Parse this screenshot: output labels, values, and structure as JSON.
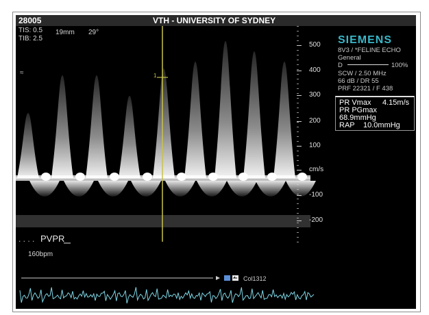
{
  "header": {
    "left_id": "28005",
    "title": "VTH - UNIVERSITY OF SYDNEY"
  },
  "acq": {
    "tis": "TIS: 0.5",
    "tib": "TIB: 2.5",
    "depth": "19mm",
    "angle": "29°",
    "cursor_marker": "1"
  },
  "scale": {
    "labels": [
      "500",
      "400",
      "300",
      "200",
      "100",
      "cm/s",
      "-100",
      "-200"
    ],
    "unit": "cm/s"
  },
  "system": {
    "brand": "SIEMENS",
    "probe": "8V3 / *FELINE ECHO",
    "preset": "General",
    "gain_label": "D",
    "gain_value": "100%",
    "mode": "SCW / 2.50 MHz",
    "db": "66 dB / DR 55",
    "prf": "PRF 22321 / F 438"
  },
  "measurements": [
    {
      "label": "PR Vmax",
      "value": "4.15m/s"
    },
    {
      "label": "PR PGmax",
      "value": ""
    },
    {
      "label": "68.9mmHg",
      "value": ""
    },
    {
      "label": "RAP",
      "value": "10.0mmHg"
    }
  ],
  "annotation": "PVPR",
  "heart_rate": "160bpm",
  "sweep_label": "Col1312",
  "colors": {
    "cursor": "#c9c24a",
    "ecg": "#7fd6e6",
    "brand": "#39b7c9"
  }
}
